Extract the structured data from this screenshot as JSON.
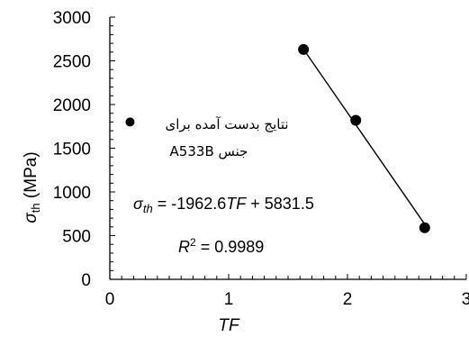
{
  "chart_data": {
    "type": "scatter",
    "xlabel": "TF",
    "ylabel_main": "σ",
    "ylabel_sub": "th",
    "ylabel_unit": " (MPa)",
    "xlim": [
      0,
      3
    ],
    "ylim": [
      0,
      3000
    ],
    "x_ticks": [
      0,
      1,
      2,
      3
    ],
    "y_ticks": [
      0,
      500,
      1000,
      1500,
      2000,
      2500,
      3000
    ],
    "grid": false,
    "series": [
      {
        "points": [
          [
            1.63,
            2630
          ],
          [
            2.07,
            1820
          ],
          [
            2.65,
            590
          ]
        ]
      }
    ],
    "trendline": {
      "slope": -1962.6,
      "intercept": 5831.5,
      "x_range": [
        1.63,
        2.65
      ]
    },
    "legend": {
      "marker_point": [
        0.17,
        1800
      ],
      "line1": "نتایج بدست آمده برای",
      "line2": "A533B  جنس"
    },
    "equation": {
      "sigma": "σ",
      "sub": "th",
      "mid": " = -1962.6",
      "tf": "TF",
      "end": " + 5831.5"
    },
    "r2": {
      "r": "R",
      "sup": "2",
      "value": " = 0.9989"
    }
  }
}
